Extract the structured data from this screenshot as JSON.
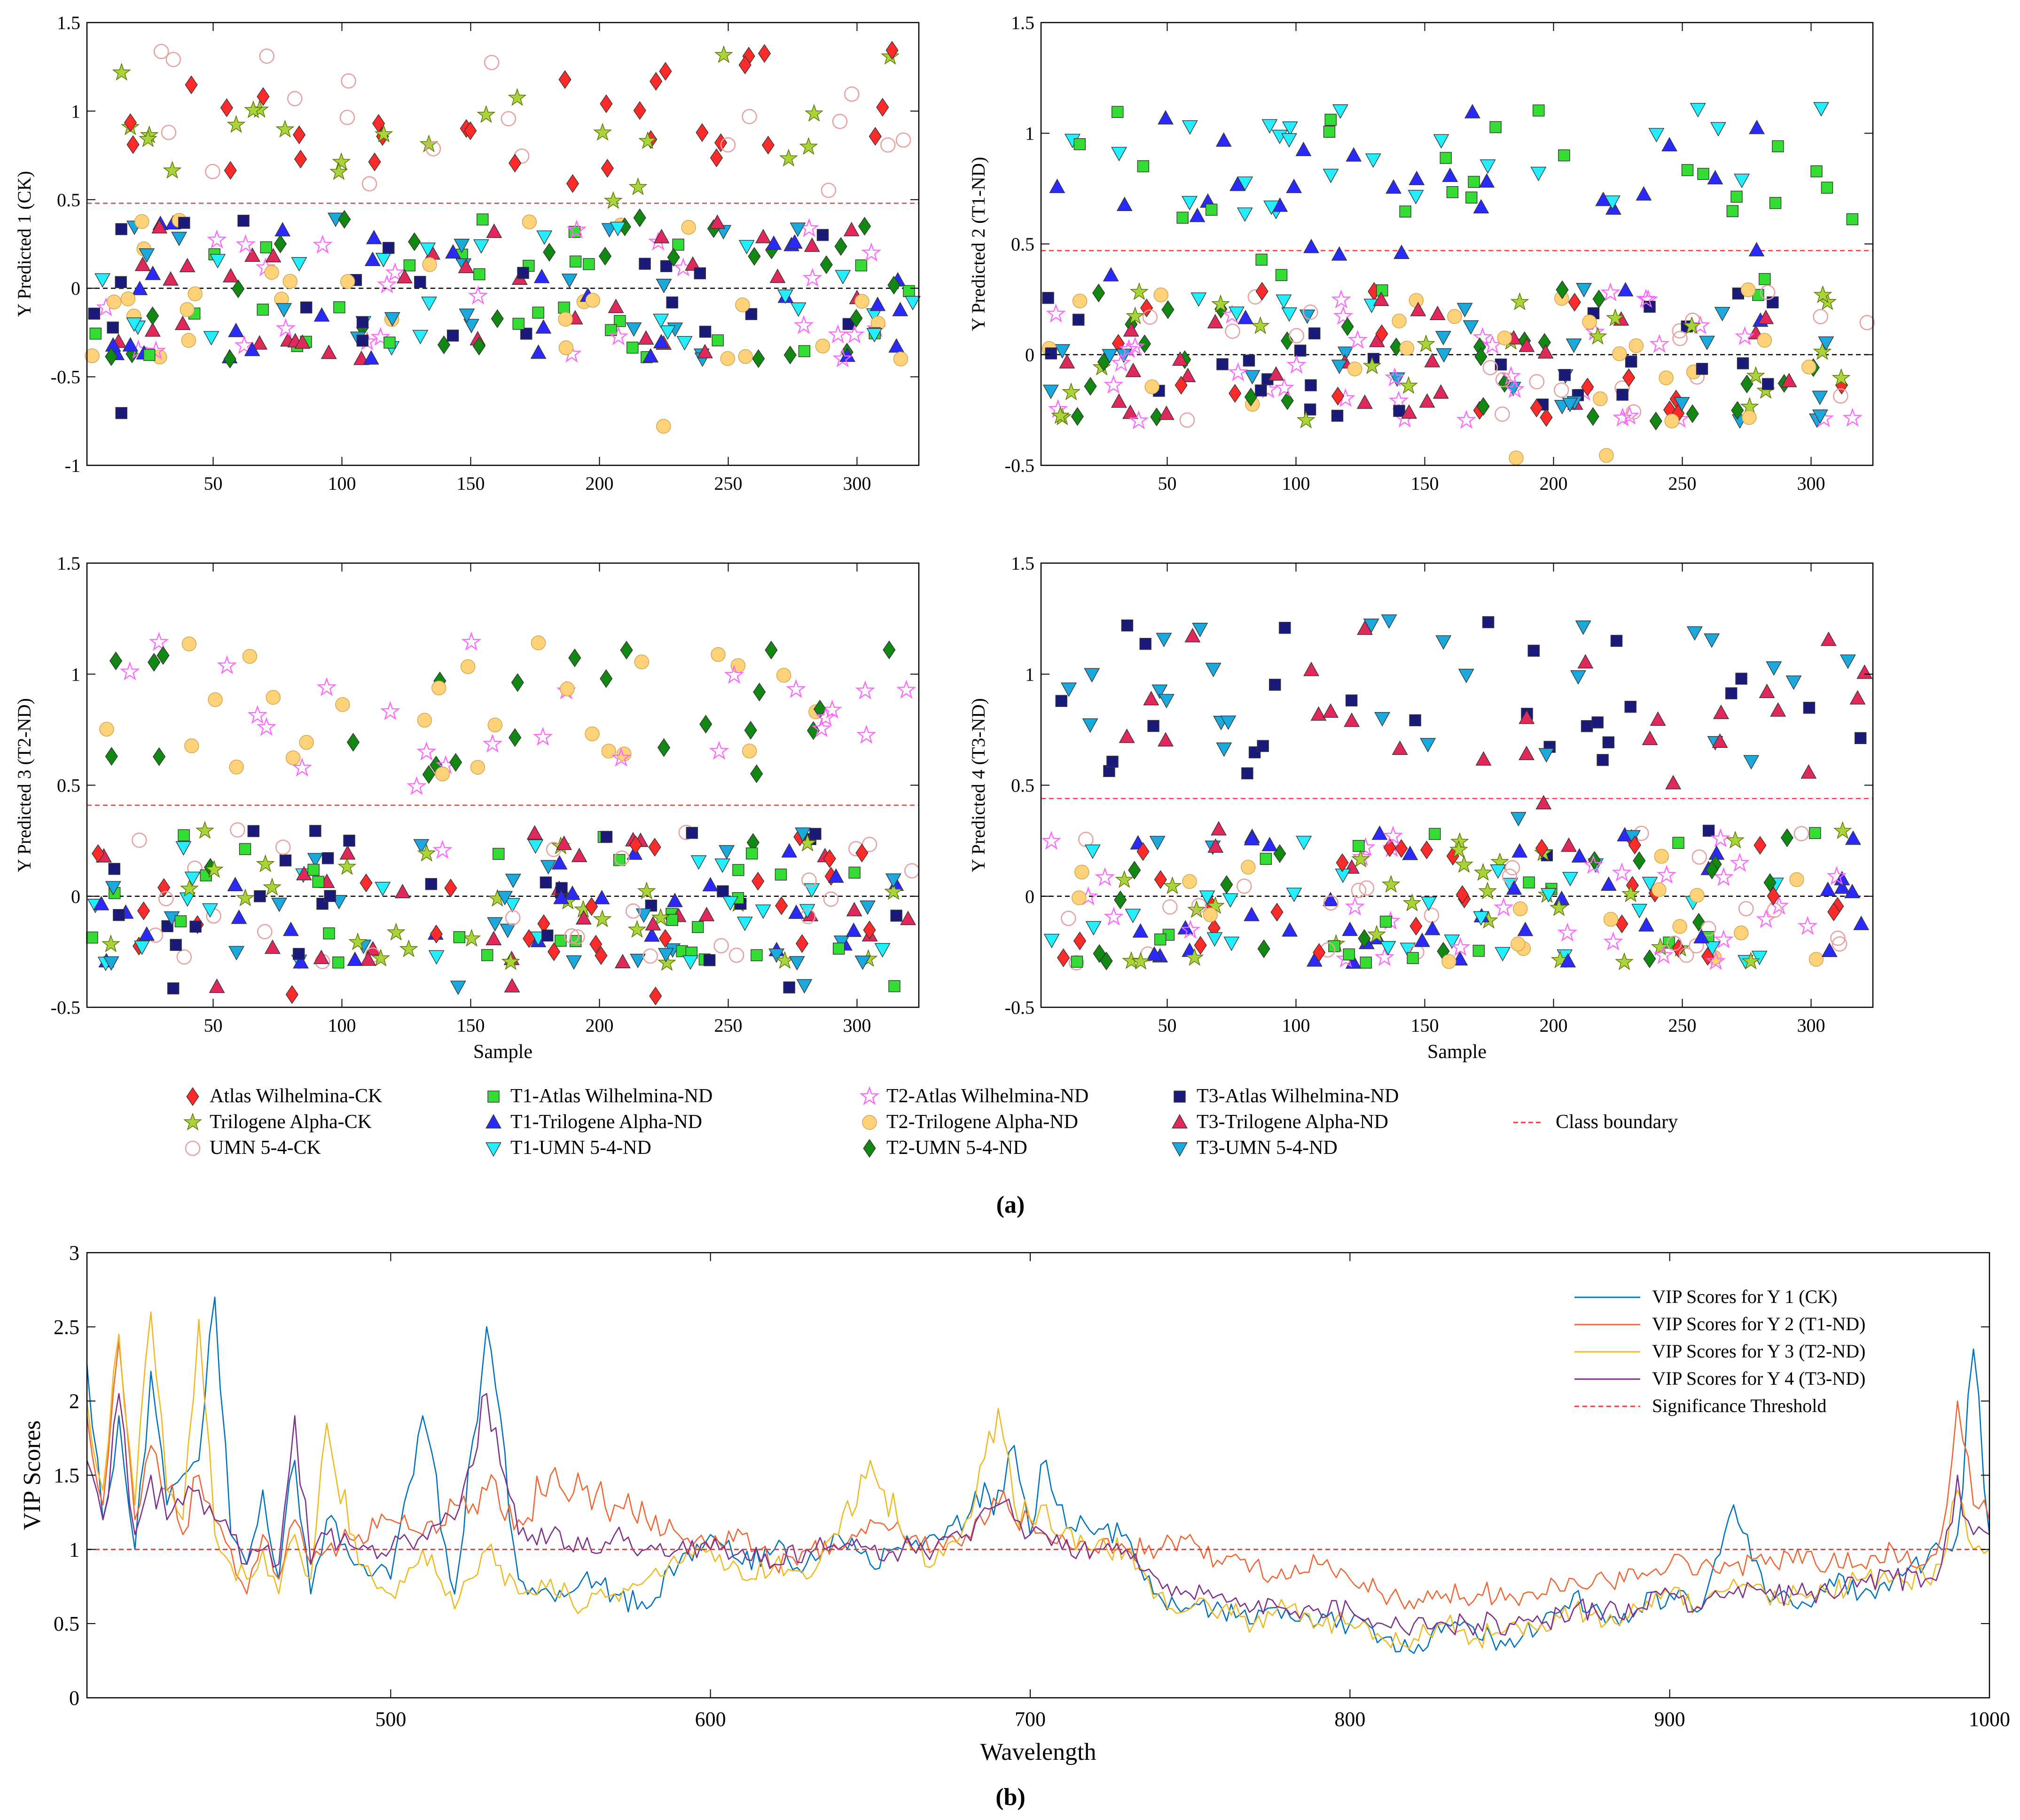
{
  "figure": {
    "label_a": "(a)",
    "label_b": "(b)"
  },
  "colors": {
    "atlas_ck": "#ff2a2a",
    "trilogene_ck": "#a8d43a",
    "umn_ck": "#e8a0a0",
    "t1_atlas": "#33dd33",
    "t1_trilogene": "#2a2aff",
    "t1_umn": "#22eeff",
    "t2_atlas": "#ff66ff",
    "t2_trilogene": "#ffd27a",
    "t2_umn": "#118811",
    "t3_atlas": "#1a1a7a",
    "t3_trilogene": "#e0285a",
    "t3_umn": "#1aa8dd",
    "boundary": "#ff3333",
    "zero_line": "#000000",
    "vip1": "#0072bd",
    "vip2": "#ee6633",
    "vip3": "#f0b820",
    "vip4": "#7e2f8e"
  },
  "legend": [
    {
      "key": "atlas_ck",
      "label": "Atlas Wilhelmina-CK",
      "marker": "diamond"
    },
    {
      "key": "trilogene_ck",
      "label": "Trilogene Alpha-CK",
      "marker": "star"
    },
    {
      "key": "umn_ck",
      "label": "UMN 5-4-CK",
      "marker": "circle-open"
    },
    {
      "key": "t1_atlas",
      "label": "T1-Atlas Wilhelmina-ND",
      "marker": "square"
    },
    {
      "key": "t1_trilogene",
      "label": "T1-Trilogene Alpha-ND",
      "marker": "triangle-up"
    },
    {
      "key": "t1_umn",
      "label": "T1-UMN 5-4-ND",
      "marker": "triangle-down"
    },
    {
      "key": "t2_atlas",
      "label": "T2-Atlas Wilhelmina-ND",
      "marker": "star-open"
    },
    {
      "key": "t2_trilogene",
      "label": "T2-Trilogene Alpha-ND",
      "marker": "circle"
    },
    {
      "key": "t2_umn",
      "label": "T2-UMN 5-4-ND",
      "marker": "diamond"
    },
    {
      "key": "t3_atlas",
      "label": "T3-Atlas Wilhelmina-ND",
      "marker": "square"
    },
    {
      "key": "t3_trilogene",
      "label": "T3-Trilogene Alpha-ND",
      "marker": "triangle-up"
    },
    {
      "key": "t3_umn",
      "label": "T3-UMN 5-4-ND",
      "marker": "triangle-down"
    },
    {
      "key": "boundary",
      "label": "Class boundary",
      "marker": "dashed-line"
    }
  ],
  "chart_data": [
    {
      "id": "y1",
      "type": "scatter",
      "ylabel": "Y Predicted 1 (CK)",
      "xlabel": "",
      "xlim": [
        1,
        324
      ],
      "ylim": [
        -1,
        1.5
      ],
      "xticks": [
        50,
        100,
        150,
        200,
        250,
        300
      ],
      "yticks": [
        -1,
        -0.5,
        0,
        0.5,
        1,
        1.5
      ],
      "ytick_labels": [
        "-1",
        "-0.5",
        "0",
        "0.5",
        "1",
        "1.5"
      ],
      "class_boundary": 0.48,
      "positive_keys": [
        "atlas_ck",
        "trilogene_ck",
        "umn_ck"
      ]
    },
    {
      "id": "y2",
      "type": "scatter",
      "ylabel": "Y Predicted 2 (T1-ND)",
      "xlabel": "",
      "xlim": [
        1,
        324
      ],
      "ylim": [
        -0.5,
        1.5
      ],
      "xticks": [
        50,
        100,
        150,
        200,
        250,
        300
      ],
      "yticks": [
        -0.5,
        0,
        0.5,
        1,
        1.5
      ],
      "ytick_labels": [
        "-0.5",
        "0",
        "0.5",
        "1",
        "1.5"
      ],
      "class_boundary": 0.47,
      "positive_keys": [
        "t1_atlas",
        "t1_trilogene",
        "t1_umn"
      ]
    },
    {
      "id": "y3",
      "type": "scatter",
      "ylabel": "Y Predicted 3 (T2-ND)",
      "xlabel": "Sample",
      "xlim": [
        1,
        324
      ],
      "ylim": [
        -0.5,
        1.5
      ],
      "xticks": [
        50,
        100,
        150,
        200,
        250,
        300
      ],
      "yticks": [
        -0.5,
        0,
        0.5,
        1,
        1.5
      ],
      "ytick_labels": [
        "-0.5",
        "0",
        "0.5",
        "1",
        "1.5"
      ],
      "class_boundary": 0.41,
      "positive_keys": [
        "t2_atlas",
        "t2_trilogene",
        "t2_umn"
      ]
    },
    {
      "id": "y4",
      "type": "scatter",
      "ylabel": "Y Predicted 4 (T3-ND)",
      "xlabel": "Sample",
      "xlim": [
        1,
        324
      ],
      "ylim": [
        -0.5,
        1.5
      ],
      "xticks": [
        50,
        100,
        150,
        200,
        250,
        300
      ],
      "yticks": [
        -0.5,
        0,
        0.5,
        1,
        1.5
      ],
      "ytick_labels": [
        "-0.5",
        "0",
        "0.5",
        "1",
        "1.5"
      ],
      "class_boundary": 0.44,
      "positive_keys": [
        "t3_atlas",
        "t3_trilogene",
        "t3_umn"
      ]
    },
    {
      "id": "vip",
      "type": "line",
      "title": "",
      "xlabel": "Wavelength",
      "ylabel": "VIP Scores",
      "xlim": [
        405,
        1000
      ],
      "ylim": [
        0,
        3
      ],
      "xticks": [
        500,
        600,
        700,
        800,
        900,
        1000
      ],
      "yticks": [
        0,
        0.5,
        1,
        1.5,
        2,
        2.5,
        3
      ],
      "ytick_labels": [
        "0",
        "0.5",
        "1",
        "1.5",
        "2",
        "2.5",
        "3"
      ],
      "threshold": 1,
      "series": [
        {
          "name": "VIP Scores for Y 1 (CK)",
          "color_key": "vip1",
          "x": [
            405,
            410,
            415,
            420,
            425,
            430,
            435,
            440,
            445,
            450,
            455,
            460,
            465,
            470,
            475,
            480,
            490,
            500,
            510,
            520,
            530,
            540,
            550,
            560,
            570,
            580,
            590,
            600,
            610,
            620,
            630,
            640,
            650,
            660,
            670,
            680,
            690,
            695,
            700,
            705,
            710,
            720,
            730,
            740,
            750,
            760,
            770,
            780,
            790,
            800,
            810,
            820,
            830,
            840,
            850,
            860,
            870,
            880,
            890,
            900,
            910,
            920,
            930,
            940,
            950,
            960,
            970,
            980,
            985,
            990,
            995,
            1000
          ],
          "y": [
            2.25,
            1.2,
            1.9,
            1.0,
            2.2,
            1.3,
            1.5,
            1.6,
            2.7,
            1.1,
            0.9,
            1.4,
            0.8,
            1.6,
            0.7,
            1.2,
            0.9,
            0.8,
            1.9,
            0.7,
            2.5,
            0.8,
            0.7,
            0.8,
            0.7,
            0.6,
            0.9,
            1.1,
            0.9,
            1.0,
            0.9,
            1.1,
            0.9,
            1.0,
            1.1,
            1.2,
            1.4,
            1.7,
            1.1,
            1.6,
            1.3,
            1.1,
            1.1,
            0.7,
            0.6,
            0.6,
            0.5,
            0.6,
            0.5,
            0.5,
            0.4,
            0.3,
            0.5,
            0.4,
            0.4,
            0.5,
            0.7,
            0.5,
            0.6,
            0.7,
            0.6,
            1.3,
            0.7,
            0.6,
            0.8,
            0.7,
            0.8,
            0.9,
            1.0,
            1.1,
            2.35,
            1.1
          ]
        },
        {
          "name": "VIP Scores for Y 2 (T1-ND)",
          "color_key": "vip2",
          "x": [
            405,
            410,
            415,
            420,
            425,
            430,
            435,
            440,
            445,
            450,
            455,
            460,
            465,
            470,
            475,
            480,
            490,
            500,
            510,
            520,
            530,
            540,
            550,
            560,
            570,
            580,
            590,
            600,
            610,
            620,
            630,
            640,
            650,
            660,
            670,
            680,
            690,
            695,
            700,
            705,
            710,
            720,
            730,
            740,
            750,
            760,
            770,
            780,
            790,
            800,
            810,
            820,
            830,
            840,
            850,
            860,
            870,
            880,
            890,
            900,
            910,
            920,
            930,
            940,
            950,
            960,
            970,
            980,
            985,
            990,
            995,
            1000
          ],
          "y": [
            1.9,
            1.3,
            2.4,
            1.2,
            1.7,
            1.4,
            1.1,
            1.5,
            1.2,
            1.0,
            0.7,
            1.1,
            0.8,
            1.2,
            0.9,
            1.0,
            1.1,
            1.2,
            1.1,
            1.3,
            1.4,
            1.2,
            1.5,
            1.4,
            1.3,
            1.2,
            1.1,
            1.0,
            1.1,
            0.9,
            1.0,
            1.0,
            1.2,
            1.1,
            1.0,
            1.1,
            1.3,
            1.2,
            1.2,
            1.1,
            1.1,
            1.0,
            1.0,
            1.0,
            1.1,
            0.9,
            0.9,
            0.8,
            0.9,
            0.8,
            0.7,
            0.6,
            0.7,
            0.7,
            0.7,
            0.7,
            0.8,
            0.8,
            0.8,
            0.9,
            0.9,
            0.9,
            0.9,
            1.0,
            0.9,
            0.9,
            1.0,
            0.9,
            1.1,
            2.0,
            1.3,
            1.2
          ]
        },
        {
          "name": "VIP Scores for Y 3 (T2-ND)",
          "color_key": "vip3",
          "x": [
            405,
            410,
            415,
            420,
            425,
            430,
            435,
            440,
            445,
            450,
            455,
            460,
            465,
            470,
            475,
            480,
            490,
            500,
            510,
            520,
            530,
            540,
            550,
            560,
            570,
            580,
            590,
            600,
            610,
            620,
            630,
            640,
            650,
            660,
            670,
            680,
            690,
            695,
            700,
            705,
            710,
            720,
            730,
            740,
            750,
            760,
            770,
            780,
            790,
            800,
            810,
            820,
            830,
            840,
            850,
            860,
            870,
            880,
            890,
            900,
            910,
            920,
            930,
            940,
            950,
            960,
            970,
            980,
            985,
            990,
            995,
            1000
          ],
          "y": [
            2.0,
            1.4,
            2.45,
            1.3,
            2.6,
            1.4,
            1.2,
            2.55,
            1.1,
            0.9,
            0.8,
            1.0,
            0.7,
            1.1,
            0.8,
            1.85,
            0.9,
            0.7,
            1.0,
            0.6,
            1.0,
            0.7,
            0.8,
            0.6,
            0.7,
            0.8,
            0.9,
            1.0,
            0.8,
            0.9,
            0.8,
            1.1,
            1.6,
            1.1,
            0.9,
            1.2,
            1.95,
            1.3,
            1.2,
            1.3,
            1.1,
            1.0,
            1.0,
            0.7,
            0.6,
            0.6,
            0.5,
            0.6,
            0.5,
            0.5,
            0.4,
            0.4,
            0.5,
            0.4,
            0.5,
            0.5,
            0.6,
            0.5,
            0.6,
            0.7,
            0.6,
            0.8,
            0.7,
            0.7,
            0.7,
            0.8,
            0.8,
            0.8,
            0.9,
            1.4,
            1.0,
            1.0
          ]
        },
        {
          "name": "VIP Scores for Y 4 (T3-ND)",
          "color_key": "vip4",
          "x": [
            405,
            410,
            415,
            420,
            425,
            430,
            435,
            440,
            445,
            450,
            455,
            460,
            465,
            470,
            475,
            480,
            490,
            500,
            510,
            520,
            530,
            540,
            550,
            560,
            570,
            580,
            590,
            600,
            610,
            620,
            630,
            640,
            650,
            660,
            670,
            680,
            690,
            695,
            700,
            705,
            710,
            720,
            730,
            740,
            750,
            760,
            770,
            780,
            790,
            800,
            810,
            820,
            830,
            840,
            850,
            860,
            870,
            880,
            890,
            900,
            910,
            920,
            930,
            940,
            950,
            960,
            970,
            980,
            985,
            990,
            995,
            1000
          ],
          "y": [
            1.6,
            1.2,
            2.05,
            1.1,
            1.5,
            1.2,
            1.3,
            1.4,
            1.2,
            1.1,
            0.9,
            1.0,
            0.9,
            1.9,
            0.9,
            1.1,
            1.0,
            1.0,
            1.1,
            1.2,
            2.05,
            1.1,
            1.1,
            1.0,
            1.1,
            1.0,
            1.0,
            1.0,
            1.0,
            0.9,
            1.0,
            1.0,
            1.0,
            1.0,
            1.0,
            1.1,
            1.3,
            1.2,
            1.1,
            1.1,
            1.0,
            1.0,
            1.0,
            0.8,
            0.7,
            0.7,
            0.6,
            0.6,
            0.6,
            0.6,
            0.5,
            0.5,
            0.5,
            0.5,
            0.5,
            0.5,
            0.6,
            0.6,
            0.6,
            0.7,
            0.6,
            0.7,
            0.7,
            0.7,
            0.7,
            0.8,
            0.8,
            0.8,
            0.9,
            1.5,
            1.1,
            1.1
          ]
        },
        {
          "name": "Significance Threshold",
          "color_key": "boundary",
          "x": [
            405,
            1000
          ],
          "y": [
            1,
            1
          ]
        }
      ]
    }
  ]
}
